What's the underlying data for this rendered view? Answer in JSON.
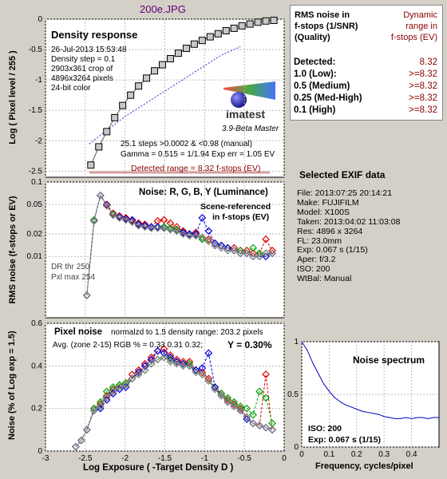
{
  "window_title": "200e.JPG",
  "density_panel": {
    "title": "Density response",
    "info": [
      "26-Jul-2013 15:53:48",
      "Density step = 0.1",
      "2903x361 crop of",
      "4896x3264 pixels",
      "24-bit color"
    ],
    "stats": [
      "25.1 steps >0.0002 & <0.98 (manual)",
      "Gamma = 0.515 = 1/1.94  Exp err = 1.05 EV"
    ],
    "detected_range": "Detected range = 8.32 f-stops (EV)",
    "logo_text": "imatest",
    "version": "3.9-Beta  Master",
    "ylabel": "Log ( Pixel level / 255 )"
  },
  "noise_panel": {
    "title": "Noise: R, G, B, Y (Luminance)",
    "note": [
      "Scene-referenced",
      "in f-stops (EV)"
    ],
    "dr_notes": [
      "DR thr 250",
      "Pxl max 254"
    ],
    "ylabel": "RMS noise (f-stops or EV)"
  },
  "pixel_noise_panel": {
    "title": "Pixel noise",
    "subtitle": "normalzd to 1.5 density range: 203.2 pixels",
    "avg_text": "Avg. (zone 2-15) RGB % = 0.33  0.31  0.32;",
    "y_text": "Y = 0.30%",
    "ylabel": "Noise (% of Log exp = 1.5)",
    "xlabel": "Log Exposure ( -Target Density D )"
  },
  "dynamic_range_table": {
    "header_left": [
      "RMS noise in",
      "f-stops (1/SNR)",
      "(Quality)"
    ],
    "header_right": [
      "Dynamic",
      "range in",
      "f-stops (EV)"
    ],
    "rows": [
      {
        "label": "Detected:",
        "value": "8.32"
      },
      {
        "label": "1.0  (Low):",
        "value": ">=8.32"
      },
      {
        "label": "0.5  (Medium)",
        "value": ">=8.32"
      },
      {
        "label": "0.25 (Med-High)",
        "value": ">=8.32"
      },
      {
        "label": "0.1   (High)",
        "value": ">=8.32"
      }
    ]
  },
  "exif": {
    "title": "Selected EXIF data",
    "lines": [
      "File:  2013:07:25 20:14:21",
      "Make:  FUJIFILM",
      "Model:  X100S",
      "Taken:  2013:04:02 11:03:08",
      "Res:   4896 x 3264",
      "FL:  23.0mm",
      "Exp:  0.067 s  (1/15)",
      "Aper:  f/3.2",
      "ISO:   200",
      "WtBal: Manual"
    ]
  },
  "spectrum_panel": {
    "title": "Noise spectrum",
    "iso": "ISO:   200",
    "exp": "Exp:  0.067 s   (1/15)",
    "xlabel": "Frequency, cycles/pixel"
  },
  "colors": {
    "red": "#e00000",
    "green": "#00a000",
    "blue": "#0000e0",
    "gray": "#808080",
    "title_purple": "#60007a",
    "dark_red": "#8b0000"
  },
  "chart_data": [
    {
      "type": "scatter",
      "name": "Density response",
      "xlim": [
        -3,
        0
      ],
      "ylim": [
        -2.6,
        0
      ],
      "xticks": [
        -3,
        -2.5,
        -2,
        -1.5,
        -1,
        -0.5,
        0
      ],
      "yticks": [
        0,
        -0.5,
        -1,
        -1.5,
        -2,
        -2.5
      ],
      "ytick_labels": [
        "0",
        "-0.5",
        "-1",
        "-1.5",
        "-2",
        "-2.5"
      ],
      "x": [
        -2.43,
        -2.33,
        -2.23,
        -2.13,
        -2.03,
        -1.93,
        -1.83,
        -1.73,
        -1.63,
        -1.53,
        -1.43,
        -1.33,
        -1.23,
        -1.13,
        -1.03,
        -0.93,
        -0.83,
        -0.73,
        -0.63,
        -0.53,
        -0.43,
        -0.33,
        -0.23,
        -0.13
      ],
      "y": [
        -2.4,
        -2.1,
        -1.85,
        -1.62,
        -1.42,
        -1.25,
        -1.1,
        -0.97,
        -0.85,
        -0.75,
        -0.65,
        -0.56,
        -0.48,
        -0.41,
        -0.35,
        -0.29,
        -0.24,
        -0.19,
        -0.15,
        -0.11,
        -0.08,
        -0.05,
        -0.03,
        -0.02
      ],
      "fit_x": [
        -2.45,
        -2.2,
        -2.0,
        -1.7,
        -1.4,
        -1.1,
        -0.8,
        -0.55
      ],
      "fit_y": [
        -2.05,
        -1.8,
        -1.6,
        -1.35,
        -1.1,
        -0.85,
        -0.6,
        -0.45
      ]
    },
    {
      "type": "line",
      "name": "RMS noise (log scale)",
      "xlim": [
        -3,
        0
      ],
      "ylim_log": [
        0.0015,
        0.1
      ],
      "yticks": [
        0.1,
        0.05,
        0.02,
        0.01
      ],
      "ytick_labels": [
        "0.1",
        "0.05",
        "0.02",
        "0.01"
      ],
      "x": [
        -2.48,
        -2.39,
        -2.31,
        -2.23,
        -2.15,
        -2.07,
        -1.99,
        -1.91,
        -1.83,
        -1.75,
        -1.67,
        -1.59,
        -1.51,
        -1.43,
        -1.35,
        -1.27,
        -1.19,
        -1.11,
        -1.03,
        -0.95,
        -0.87,
        -0.79,
        -0.71,
        -0.63,
        -0.55,
        -0.47,
        -0.39,
        -0.31,
        -0.23,
        -0.15
      ],
      "series": [
        {
          "name": "R",
          "color": "#e00000",
          "values": [
            0.003,
            0.03,
            0.066,
            0.05,
            0.038,
            0.035,
            0.033,
            0.03,
            0.028,
            0.027,
            0.025,
            0.03,
            0.031,
            0.028,
            0.025,
            0.022,
            0.02,
            0.021,
            0.018,
            0.017,
            0.015,
            0.014,
            0.013,
            0.013,
            0.012,
            0.012,
            0.011,
            0.011,
            0.017,
            0.012
          ]
        },
        {
          "name": "G",
          "color": "#00a000",
          "values": [
            0.003,
            0.031,
            0.066,
            0.048,
            0.037,
            0.033,
            0.031,
            0.029,
            0.026,
            0.025,
            0.024,
            0.024,
            0.025,
            0.024,
            0.023,
            0.021,
            0.019,
            0.019,
            0.017,
            0.016,
            0.014,
            0.014,
            0.013,
            0.012,
            0.012,
            0.011,
            0.013,
            0.011,
            0.011,
            0.011
          ]
        },
        {
          "name": "B",
          "color": "#0000e0",
          "values": [
            0.003,
            0.03,
            0.066,
            0.049,
            0.036,
            0.034,
            0.032,
            0.031,
            0.027,
            0.026,
            0.025,
            0.025,
            0.024,
            0.023,
            0.022,
            0.021,
            0.02,
            0.02,
            0.033,
            0.022,
            0.015,
            0.014,
            0.013,
            0.012,
            0.011,
            0.011,
            0.01,
            0.01,
            0.01,
            0.011
          ]
        },
        {
          "name": "Y",
          "color": "#808080",
          "values": [
            0.003,
            0.03,
            0.066,
            0.048,
            0.036,
            0.033,
            0.031,
            0.029,
            0.026,
            0.025,
            0.024,
            0.024,
            0.024,
            0.023,
            0.022,
            0.02,
            0.019,
            0.019,
            0.018,
            0.016,
            0.014,
            0.013,
            0.012,
            0.012,
            0.011,
            0.011,
            0.01,
            0.01,
            0.011,
            0.011
          ]
        }
      ]
    },
    {
      "type": "line",
      "name": "Pixel noise",
      "xlim": [
        -3,
        0
      ],
      "ylim": [
        0,
        0.6
      ],
      "xticks": [
        -3,
        -2.5,
        -2,
        -1.5,
        -1,
        -0.5,
        0
      ],
      "yticks": [
        0,
        0.2,
        0.4,
        0.6
      ],
      "ytick_labels": [
        "0",
        "0.2",
        "0.4",
        "0.6"
      ],
      "x": [
        -2.62,
        -2.55,
        -2.48,
        -2.39,
        -2.31,
        -2.23,
        -2.15,
        -2.07,
        -1.99,
        -1.91,
        -1.83,
        -1.75,
        -1.67,
        -1.59,
        -1.51,
        -1.43,
        -1.35,
        -1.27,
        -1.19,
        -1.11,
        -1.03,
        -0.95,
        -0.87,
        -0.79,
        -0.71,
        -0.63,
        -0.55,
        -0.47,
        -0.39,
        -0.31,
        -0.23,
        -0.15
      ],
      "series": [
        {
          "name": "R",
          "color": "#e00000",
          "values": [
            0.02,
            0.05,
            0.1,
            0.2,
            0.22,
            0.26,
            0.29,
            0.31,
            0.32,
            0.36,
            0.38,
            0.41,
            0.44,
            0.47,
            0.48,
            0.45,
            0.43,
            0.42,
            0.42,
            0.38,
            0.37,
            0.34,
            0.3,
            0.27,
            0.24,
            0.22,
            0.2,
            0.16,
            0.13,
            0.12,
            0.36,
            0.1
          ]
        },
        {
          "name": "G",
          "color": "#00a000",
          "values": [
            0.02,
            0.05,
            0.1,
            0.2,
            0.23,
            0.28,
            0.3,
            0.31,
            0.32,
            0.34,
            0.36,
            0.38,
            0.41,
            0.43,
            0.44,
            0.43,
            0.42,
            0.41,
            0.41,
            0.38,
            0.36,
            0.33,
            0.3,
            0.27,
            0.25,
            0.23,
            0.21,
            0.2,
            0.17,
            0.28,
            0.25,
            0.13
          ]
        },
        {
          "name": "B",
          "color": "#0000e0",
          "values": [
            0.02,
            0.05,
            0.1,
            0.19,
            0.2,
            0.24,
            0.27,
            0.29,
            0.3,
            0.34,
            0.37,
            0.4,
            0.43,
            0.47,
            0.46,
            0.44,
            0.42,
            0.41,
            0.4,
            0.38,
            0.39,
            0.46,
            0.3,
            0.26,
            0.23,
            0.21,
            0.19,
            0.15,
            0.13,
            0.12,
            0.11,
            0.1
          ]
        },
        {
          "name": "Y",
          "color": "#808080",
          "values": [
            0.02,
            0.05,
            0.1,
            0.19,
            0.21,
            0.25,
            0.28,
            0.3,
            0.31,
            0.34,
            0.36,
            0.38,
            0.41,
            0.43,
            0.44,
            0.42,
            0.41,
            0.4,
            0.4,
            0.37,
            0.36,
            0.33,
            0.29,
            0.26,
            0.23,
            0.21,
            0.19,
            0.16,
            0.13,
            0.12,
            0.11,
            0.1
          ]
        }
      ]
    },
    {
      "type": "line",
      "name": "Noise spectrum",
      "xlim": [
        0,
        0.5
      ],
      "ylim": [
        0,
        1
      ],
      "xticks": [
        0,
        0.1,
        0.2,
        0.3,
        0.4
      ],
      "yticks": [
        0,
        0.5,
        1
      ],
      "ytick_labels": [
        "0",
        "0.5",
        "1"
      ],
      "x": [
        0,
        0.02,
        0.04,
        0.06,
        0.08,
        0.1,
        0.12,
        0.14,
        0.16,
        0.18,
        0.2,
        0.22,
        0.24,
        0.26,
        0.28,
        0.3,
        0.32,
        0.34,
        0.36,
        0.38,
        0.4,
        0.42,
        0.44,
        0.46,
        0.48,
        0.5
      ],
      "y": [
        1.0,
        0.92,
        0.8,
        0.7,
        0.6,
        0.53,
        0.47,
        0.43,
        0.4,
        0.38,
        0.36,
        0.34,
        0.33,
        0.32,
        0.31,
        0.29,
        0.28,
        0.27,
        0.27,
        0.28,
        0.27,
        0.28,
        0.28,
        0.27,
        0.28,
        0.28
      ]
    }
  ]
}
